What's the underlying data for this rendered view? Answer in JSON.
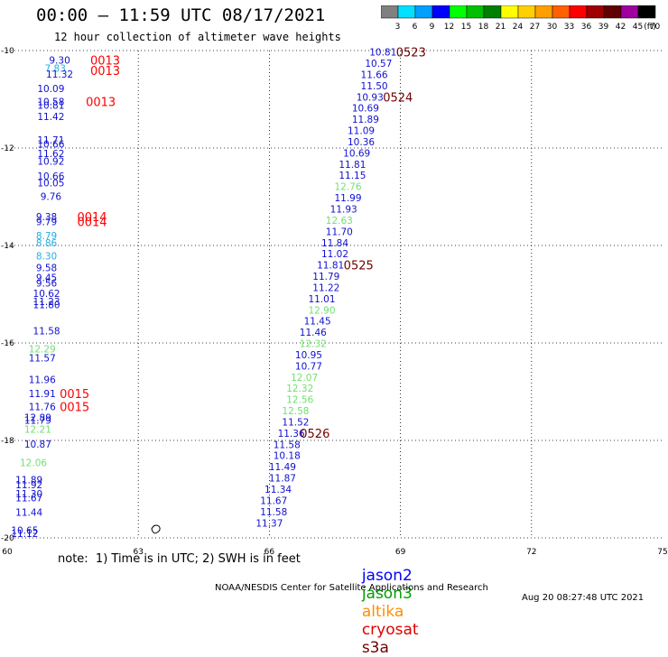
{
  "header": {
    "title": "00:00 – 11:59 UTC 08/17/2021",
    "subtitle": "12 hour collection of altimeter wave heights"
  },
  "colorbar": {
    "labels": [
      "3",
      "6",
      "9",
      "12",
      "15",
      "18",
      "21",
      "24",
      "27",
      "30",
      "33",
      "36",
      "39",
      "42",
      "45",
      "70"
    ],
    "unit": "(ft)",
    "colors": [
      "#808080",
      "#00e0ff",
      "#00a0ff",
      "#0000ff",
      "#00ff00",
      "#00c000",
      "#008000",
      "#ffff00",
      "#ffd000",
      "#ffa000",
      "#ff6000",
      "#ff0000",
      "#a00000",
      "#600000",
      "#a000a0",
      "#000000"
    ]
  },
  "note": "note:  1) Time is in UTC; 2) SWH is in feet",
  "legend": [
    {
      "label": "jason2",
      "color": "#0000ff"
    },
    {
      "label": "jason3",
      "color": "#00a000"
    },
    {
      "label": "altika",
      "color": "#ff9000"
    },
    {
      "label": "cryosat",
      "color": "#e00000"
    },
    {
      "label": "s3a",
      "color": "#700000"
    }
  ],
  "footer": {
    "left": "NOAA/NESDIS Center for Satellite Applications and Research",
    "right": "Aug 20 08:27:48 UTC 2021"
  },
  "chart_data": {
    "type": "scatter",
    "x_ticks": [
      "60",
      "63",
      "66",
      "69",
      "72",
      "75"
    ],
    "y_ticks": [
      "-10",
      "-12",
      "-14",
      "-16",
      "-18",
      "-20"
    ],
    "xlim": [
      60,
      75
    ],
    "ylim": [
      -20,
      -10
    ],
    "grid": true,
    "colors": {
      "blue": "#1010d0",
      "green": "#70e070",
      "cyan": "#20b0e0",
      "red": "#ff0000",
      "dark": "#700000"
    },
    "points": [
      {
        "x": 61.2,
        "y": -10.19,
        "label": "9.30",
        "color": "blue"
      },
      {
        "x": 61.1,
        "y": -10.36,
        "label": "7.83",
        "color": "cyan"
      },
      {
        "x": 61.2,
        "y": -10.48,
        "label": "11.32",
        "color": "blue"
      },
      {
        "x": 61.0,
        "y": -10.78,
        "label": "10.09",
        "color": "blue"
      },
      {
        "x": 61.0,
        "y": -11.05,
        "label": "10.58",
        "color": "blue"
      },
      {
        "x": 61.0,
        "y": -11.12,
        "label": "10.81",
        "color": "blue"
      },
      {
        "x": 61.0,
        "y": -11.35,
        "label": "11.42",
        "color": "blue"
      },
      {
        "x": 61.0,
        "y": -11.83,
        "label": "11.71",
        "color": "blue"
      },
      {
        "x": 61.0,
        "y": -11.92,
        "label": "10.66",
        "color": "blue"
      },
      {
        "x": 61.0,
        "y": -12.11,
        "label": "11.62",
        "color": "blue"
      },
      {
        "x": 61.0,
        "y": -12.27,
        "label": "10.92",
        "color": "blue"
      },
      {
        "x": 61.0,
        "y": -12.57,
        "label": "10.66",
        "color": "blue"
      },
      {
        "x": 61.0,
        "y": -12.71,
        "label": "10.05",
        "color": "blue"
      },
      {
        "x": 61.0,
        "y": -12.99,
        "label": "9.76",
        "color": "blue"
      },
      {
        "x": 60.9,
        "y": -13.41,
        "label": "9.38",
        "color": "blue"
      },
      {
        "x": 60.9,
        "y": -13.51,
        "label": "9.79",
        "color": "blue"
      },
      {
        "x": 60.9,
        "y": -13.8,
        "label": "8.79",
        "color": "cyan"
      },
      {
        "x": 60.9,
        "y": -13.94,
        "label": "8.86",
        "color": "cyan"
      },
      {
        "x": 60.9,
        "y": -14.21,
        "label": "8.30",
        "color": "cyan"
      },
      {
        "x": 60.9,
        "y": -14.45,
        "label": "9.58",
        "color": "blue"
      },
      {
        "x": 60.9,
        "y": -14.66,
        "label": "9.45",
        "color": "blue"
      },
      {
        "x": 60.9,
        "y": -14.77,
        "label": "9.56",
        "color": "blue"
      },
      {
        "x": 60.9,
        "y": -14.98,
        "label": "10.62",
        "color": "blue"
      },
      {
        "x": 60.9,
        "y": -15.15,
        "label": "11.23",
        "color": "blue"
      },
      {
        "x": 60.9,
        "y": -15.21,
        "label": "11.80",
        "color": "blue"
      },
      {
        "x": 60.9,
        "y": -15.75,
        "label": "11.58",
        "color": "blue"
      },
      {
        "x": 60.8,
        "y": -16.12,
        "label": "12.29",
        "color": "green"
      },
      {
        "x": 60.8,
        "y": -16.31,
        "label": "11.57",
        "color": "blue"
      },
      {
        "x": 60.8,
        "y": -16.75,
        "label": "11.96",
        "color": "blue"
      },
      {
        "x": 60.8,
        "y": -17.04,
        "label": "11.91",
        "color": "blue"
      },
      {
        "x": 60.8,
        "y": -17.31,
        "label": "11.76",
        "color": "blue"
      },
      {
        "x": 60.7,
        "y": -17.53,
        "label": "12.89",
        "color": "blue"
      },
      {
        "x": 60.7,
        "y": -17.58,
        "label": "11.79",
        "color": "blue"
      },
      {
        "x": 60.7,
        "y": -17.77,
        "label": "12.21",
        "color": "green"
      },
      {
        "x": 60.7,
        "y": -18.07,
        "label": "10.87",
        "color": "blue"
      },
      {
        "x": 60.6,
        "y": -18.45,
        "label": "12.06",
        "color": "green"
      },
      {
        "x": 60.5,
        "y": -18.81,
        "label": "11.89",
        "color": "blue"
      },
      {
        "x": 60.5,
        "y": -18.91,
        "label": "11.92",
        "color": "blue"
      },
      {
        "x": 60.5,
        "y": -19.09,
        "label": "11.30",
        "color": "blue"
      },
      {
        "x": 60.5,
        "y": -19.18,
        "label": "11.67",
        "color": "blue"
      },
      {
        "x": 60.5,
        "y": -19.47,
        "label": "11.44",
        "color": "blue"
      },
      {
        "x": 60.4,
        "y": -19.84,
        "label": "10.65",
        "color": "blue"
      },
      {
        "x": 60.4,
        "y": -19.91,
        "label": "11.12",
        "color": "blue"
      },
      {
        "x": 68.6,
        "y": -10.03,
        "label": "10.81",
        "color": "blue"
      },
      {
        "x": 68.5,
        "y": -10.26,
        "label": "10.57",
        "color": "blue"
      },
      {
        "x": 68.4,
        "y": -10.49,
        "label": "11.66",
        "color": "blue"
      },
      {
        "x": 68.4,
        "y": -10.72,
        "label": "11.50",
        "color": "blue"
      },
      {
        "x": 68.3,
        "y": -10.95,
        "label": "10.93",
        "color": "blue"
      },
      {
        "x": 68.2,
        "y": -11.18,
        "label": "10.69",
        "color": "blue"
      },
      {
        "x": 68.2,
        "y": -11.41,
        "label": "11.89",
        "color": "blue"
      },
      {
        "x": 68.1,
        "y": -11.64,
        "label": "11.09",
        "color": "blue"
      },
      {
        "x": 68.1,
        "y": -11.87,
        "label": "10.36",
        "color": "blue"
      },
      {
        "x": 68.0,
        "y": -12.1,
        "label": "10.69",
        "color": "blue"
      },
      {
        "x": 67.9,
        "y": -12.33,
        "label": "11.81",
        "color": "blue"
      },
      {
        "x": 67.9,
        "y": -12.56,
        "label": "11.15",
        "color": "blue"
      },
      {
        "x": 67.8,
        "y": -12.79,
        "label": "12.76",
        "color": "green"
      },
      {
        "x": 67.8,
        "y": -13.02,
        "label": "11.99",
        "color": "blue"
      },
      {
        "x": 67.7,
        "y": -13.25,
        "label": "11.93",
        "color": "blue"
      },
      {
        "x": 67.6,
        "y": -13.48,
        "label": "12.63",
        "color": "green"
      },
      {
        "x": 67.6,
        "y": -13.71,
        "label": "11.70",
        "color": "blue"
      },
      {
        "x": 67.5,
        "y": -13.94,
        "label": "11.84",
        "color": "blue"
      },
      {
        "x": 67.5,
        "y": -14.17,
        "label": "11.02",
        "color": "blue"
      },
      {
        "x": 67.4,
        "y": -14.4,
        "label": "11.81",
        "color": "blue"
      },
      {
        "x": 67.3,
        "y": -14.63,
        "label": "11.79",
        "color": "blue"
      },
      {
        "x": 67.3,
        "y": -14.86,
        "label": "11.22",
        "color": "blue"
      },
      {
        "x": 67.2,
        "y": -15.09,
        "label": "11.01",
        "color": "blue"
      },
      {
        "x": 67.2,
        "y": -15.32,
        "label": "12.90",
        "color": "green"
      },
      {
        "x": 67.1,
        "y": -15.55,
        "label": "11.45",
        "color": "blue"
      },
      {
        "x": 67.0,
        "y": -15.78,
        "label": "11.46",
        "color": "blue"
      },
      {
        "x": 67.0,
        "y": -16.01,
        "label": "12.32",
        "color": "green"
      },
      {
        "x": 66.9,
        "y": -16.24,
        "label": "10.95",
        "color": "blue"
      },
      {
        "x": 66.9,
        "y": -16.47,
        "label": "10.77",
        "color": "blue"
      },
      {
        "x": 66.8,
        "y": -16.7,
        "label": "12.07",
        "color": "green"
      },
      {
        "x": 66.7,
        "y": -16.93,
        "label": "12.32",
        "color": "green"
      },
      {
        "x": 66.7,
        "y": -17.16,
        "label": "12.56",
        "color": "green"
      },
      {
        "x": 66.6,
        "y": -17.39,
        "label": "12.58",
        "color": "green"
      },
      {
        "x": 66.6,
        "y": -17.62,
        "label": "11.52",
        "color": "blue"
      },
      {
        "x": 66.5,
        "y": -17.85,
        "label": "11.36",
        "color": "blue"
      },
      {
        "x": 66.4,
        "y": -18.08,
        "label": "11.58",
        "color": "blue"
      },
      {
        "x": 66.4,
        "y": -18.31,
        "label": "10.18",
        "color": "blue"
      },
      {
        "x": 66.3,
        "y": -18.54,
        "label": "11.49",
        "color": "blue"
      },
      {
        "x": 66.3,
        "y": -18.77,
        "label": "11.87",
        "color": "blue"
      },
      {
        "x": 66.2,
        "y": -19.0,
        "label": "11.34",
        "color": "blue"
      },
      {
        "x": 66.1,
        "y": -19.23,
        "label": "11.67",
        "color": "blue"
      },
      {
        "x": 66.1,
        "y": -19.46,
        "label": "11.58",
        "color": "blue"
      },
      {
        "x": 66.0,
        "y": -19.69,
        "label": "11.37",
        "color": "blue"
      }
    ],
    "time_labels": [
      {
        "x": 61.9,
        "y": -10.19,
        "label": "0013",
        "color": "red"
      },
      {
        "x": 61.9,
        "y": -10.41,
        "label": "0013",
        "color": "red"
      },
      {
        "x": 61.8,
        "y": -11.05,
        "label": "0013",
        "color": "red"
      },
      {
        "x": 61.6,
        "y": -13.41,
        "label": "0014",
        "color": "red"
      },
      {
        "x": 61.6,
        "y": -13.51,
        "label": "0014",
        "color": "red"
      },
      {
        "x": 61.2,
        "y": -17.04,
        "label": "0015",
        "color": "red"
      },
      {
        "x": 61.2,
        "y": -17.31,
        "label": "0015",
        "color": "red"
      },
      {
        "x": 68.9,
        "y": -10.03,
        "label": "0523",
        "color": "dark"
      },
      {
        "x": 68.6,
        "y": -10.95,
        "label": "0524",
        "color": "dark"
      },
      {
        "x": 67.7,
        "y": -14.4,
        "label": "0525",
        "color": "dark"
      },
      {
        "x": 66.7,
        "y": -17.85,
        "label": "0526",
        "color": "dark"
      }
    ]
  }
}
